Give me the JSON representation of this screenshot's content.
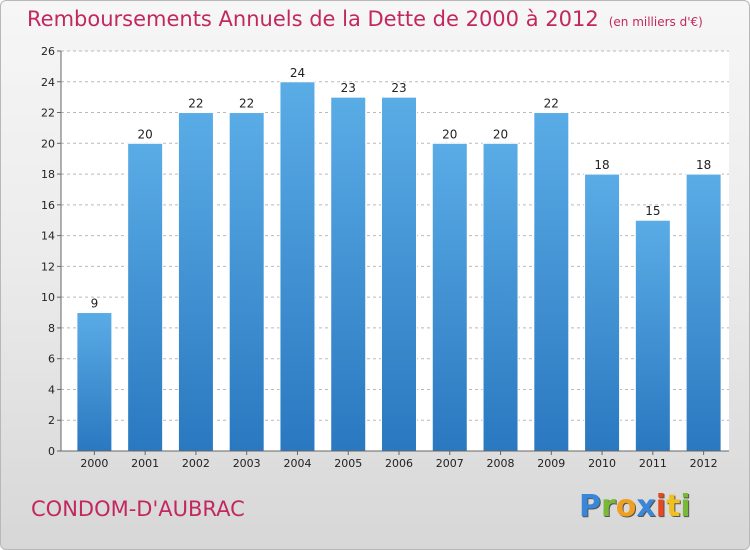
{
  "chart_data": {
    "type": "bar",
    "title": "Remboursements Annuels de la Dette de 2000 à 2012",
    "unit": "(en milliers d'€)",
    "categories": [
      "2000",
      "2001",
      "2002",
      "2003",
      "2004",
      "2005",
      "2006",
      "2007",
      "2008",
      "2009",
      "2010",
      "2011",
      "2012"
    ],
    "values": [
      9,
      20,
      22,
      22,
      24,
      23,
      23,
      20,
      20,
      22,
      18,
      15,
      18
    ],
    "ylim": [
      0,
      26
    ],
    "yticks": [
      0,
      2,
      4,
      6,
      8,
      10,
      12,
      14,
      16,
      18,
      20,
      22,
      24,
      26
    ],
    "grid": true,
    "bar_color": "#4a9de0"
  },
  "footer": {
    "commune": "CONDOM-D'AUBRAC",
    "logo_letters": [
      "P",
      "r",
      "o",
      "x",
      "i",
      "t",
      "i"
    ],
    "logo_colors": [
      "#3a86d8",
      "#7ab839",
      "#f0a020",
      "#3a86d8",
      "#e84820",
      "#f0c020",
      "#7ab839"
    ]
  }
}
